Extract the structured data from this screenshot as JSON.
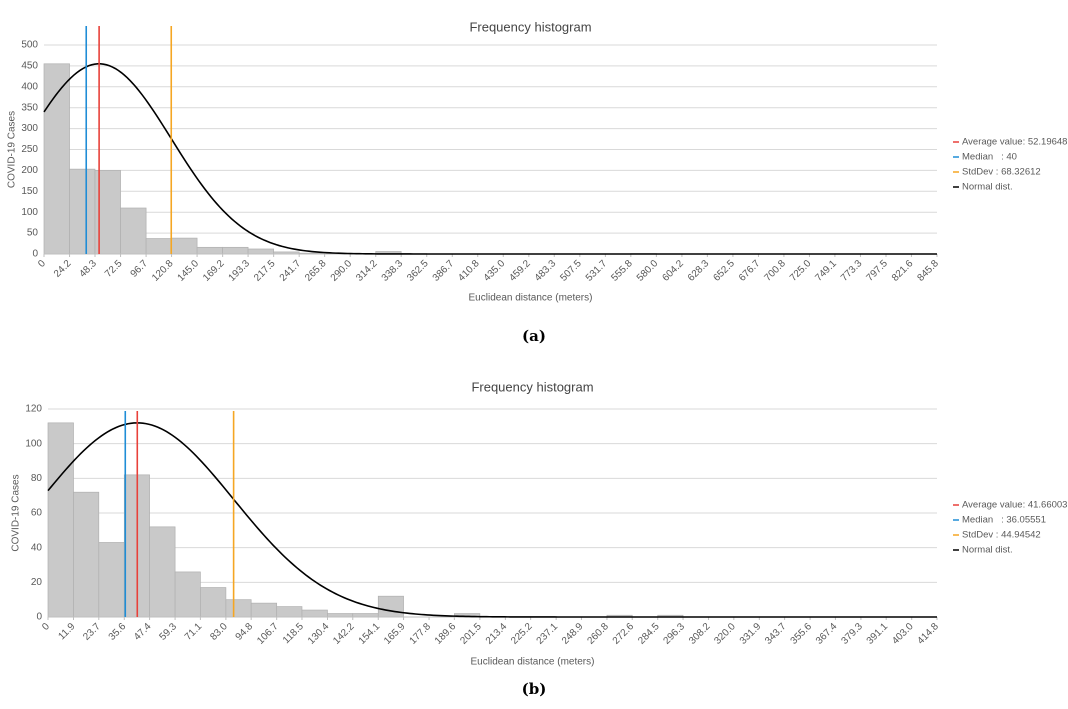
{
  "chart_data": [
    {
      "type": "histogram",
      "title": "Frequency histogram",
      "x_label": "Euclidean distance (meters)",
      "y_label": "COVID-19 Cases",
      "caption": "(a)",
      "bins": [
        0,
        24.2,
        48.3,
        72.5,
        96.7,
        120.8,
        145,
        169.2,
        193.3,
        217.5,
        241.7,
        265.8,
        290,
        314.2,
        338.3,
        362.5,
        386.7,
        410.8,
        435,
        459.2,
        483.3,
        507.5,
        531.7,
        555.8,
        580,
        604.2,
        628.3,
        652.5,
        676.7,
        700.8,
        725,
        749.1,
        773.3,
        797.5,
        821.6,
        845.8
      ],
      "counts": [
        455,
        203,
        200,
        110,
        37,
        38,
        16,
        16,
        12,
        5,
        2,
        1,
        1,
        6,
        1,
        0,
        0,
        0,
        0,
        0,
        0,
        0,
        0,
        1,
        0,
        0,
        0,
        0,
        0,
        0,
        0,
        0,
        0,
        0,
        0
      ],
      "color": "#c9c9c9",
      "xlim": [
        0,
        845.8
      ],
      "xticks": [
        0,
        24.2,
        48.3,
        72.5,
        96.7,
        120.8,
        {
          "value": 145,
          "label": "145.0"
        },
        169.2,
        193.3,
        217.5,
        241.7,
        265.8,
        {
          "value": 290,
          "label": "290.0"
        },
        314.2,
        338.3,
        362.5,
        386.7,
        410.8,
        {
          "value": 435,
          "label": "435.0"
        },
        459.2,
        483.3,
        507.5,
        531.7,
        555.8,
        {
          "value": 580,
          "label": "580.0"
        },
        604.2,
        628.3,
        652.5,
        676.7,
        700.8,
        {
          "value": 725,
          "label": "725.0"
        },
        749.1,
        773.3,
        797.5,
        821.6,
        845.8
      ],
      "ylim": [
        0,
        500
      ],
      "yticks": [
        0,
        50,
        100,
        150,
        200,
        250,
        300,
        350,
        400,
        450,
        500
      ],
      "grid": true,
      "legend_position": "right",
      "legend": [
        {
          "label": "Average value: 52.19648",
          "value": 52.19648,
          "color": "#e8413a"
        },
        {
          "label": "Median   : 40",
          "value": 40,
          "color": "#1f8dd6"
        },
        {
          "label": "StdDev : 68.32612",
          "value": 68.32612,
          "color": "#f5a623"
        },
        {
          "label": "Normal dist.",
          "color": "#000000"
        }
      ]
    },
    {
      "type": "histogram",
      "title": "Frequency histogram",
      "x_label": "Euclidean distance (meters)",
      "y_label": "COVID-19 Cases",
      "caption": "(b)",
      "bins": [
        0,
        11.9,
        23.7,
        35.6,
        47.4,
        59.3,
        71.1,
        83,
        94.8,
        106.7,
        118.5,
        130.4,
        142.2,
        154.1,
        165.9,
        177.8,
        189.6,
        201.5,
        213.4,
        225.2,
        237.1,
        248.9,
        260.8,
        272.6,
        284.5,
        296.3,
        308.2,
        320,
        331.9,
        343.7,
        355.6,
        367.4,
        379.3,
        391.1,
        403,
        414.8
      ],
      "counts": [
        112,
        72,
        43,
        82,
        52,
        26,
        17,
        10,
        8,
        6,
        4,
        2,
        2,
        12,
        0,
        0,
        2,
        0,
        0,
        0,
        0,
        0,
        1,
        0,
        1,
        0,
        0,
        0,
        0,
        0,
        0,
        0,
        0,
        0,
        0
      ],
      "color": "#c9c9c9",
      "xlim": [
        0,
        414.8
      ],
      "xticks": [
        0,
        11.9,
        23.7,
        35.6,
        47.4,
        59.3,
        71.1,
        {
          "value": 83,
          "label": "83.0"
        },
        94.8,
        106.7,
        118.5,
        130.4,
        142.2,
        154.1,
        165.9,
        177.8,
        189.6,
        201.5,
        213.4,
        225.2,
        237.1,
        248.9,
        260.8,
        272.6,
        284.5,
        296.3,
        308.2,
        {
          "value": 320,
          "label": "320.0"
        },
        331.9,
        343.7,
        355.6,
        367.4,
        379.3,
        391.1,
        {
          "value": 403,
          "label": "403.0"
        },
        414.8
      ],
      "ylim": [
        0,
        120
      ],
      "yticks": [
        0,
        20,
        40,
        60,
        80,
        100,
        120
      ],
      "grid": true,
      "legend_position": "right",
      "legend": [
        {
          "label": "Average value: 41.66003",
          "value": 41.66003,
          "color": "#e8413a"
        },
        {
          "label": "Median   : 36.05551",
          "value": 36.05551,
          "color": "#1f8dd6"
        },
        {
          "label": "StdDev : 44.94542",
          "value": 44.94542,
          "color": "#f5a623"
        },
        {
          "label": "Normal dist.",
          "color": "#000000"
        }
      ]
    }
  ]
}
